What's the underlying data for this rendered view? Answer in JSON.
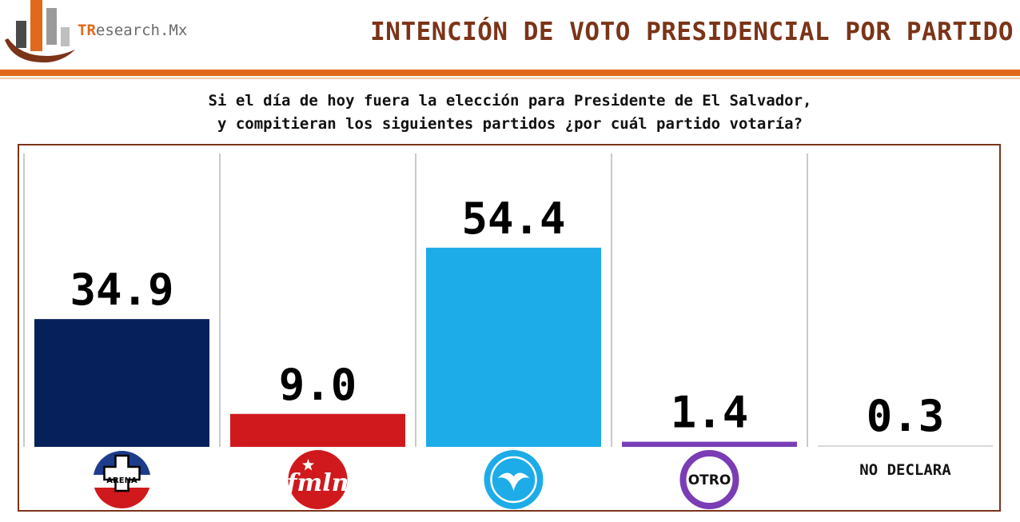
{
  "brand": {
    "accent": "TR",
    "rest": "esearch.Mx"
  },
  "header": {
    "title": "INTENCIÓN DE VOTO PRESIDENCIAL POR PARTIDO"
  },
  "question": {
    "line1": "Si el día de hoy fuera la elección para Presidente de El Salvador,",
    "line2": "y compitieran los siguientes partidos ¿por cuál partido votaría?"
  },
  "colors": {
    "accent": "#e0691d",
    "title": "#7b3418",
    "frame": "#7b3418"
  },
  "chart_data": {
    "type": "bar",
    "categories": [
      "ARENA",
      "fmln",
      "",
      "OTRO",
      "NO DECLARA"
    ],
    "values": [
      34.9,
      9.0,
      54.4,
      1.4,
      0.3
    ],
    "value_labels": [
      "34.9",
      "9.0",
      "54.4",
      "1.4",
      "0.3"
    ],
    "colors": [
      "#06205c",
      "#d0191d",
      "#1dace8",
      "#7a3db5",
      "#d8d8d8"
    ],
    "icons": [
      "arena-logo-icon",
      "fmln-logo-icon",
      "nuevas-ideas-logo-icon",
      "otro-circle-icon",
      "none"
    ],
    "title": "INTENCIÓN DE VOTO PRESIDENCIAL POR PARTIDO",
    "xlabel": "",
    "ylabel": "",
    "ylim": [
      0,
      60
    ],
    "grid": false,
    "legend": "none"
  }
}
